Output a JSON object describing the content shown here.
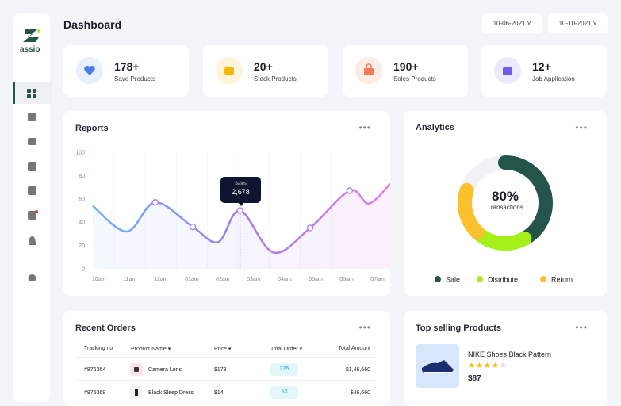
{
  "brand": "assio",
  "header": {
    "title": "Dashboard",
    "date_from": "10-06-2021",
    "date_to": "10-10-2021"
  },
  "stats": [
    {
      "value": "178+",
      "label": "Save Products"
    },
    {
      "value": "20+",
      "label": "Stock Products"
    },
    {
      "value": "190+",
      "label": "Sales Products"
    },
    {
      "value": "12+",
      "label": "Job Application"
    }
  ],
  "reports": {
    "title": "Reports",
    "tooltip": {
      "label": "Sales",
      "value": "2,678"
    },
    "ylim": [
      0,
      100
    ],
    "yticks": [
      0,
      20,
      40,
      60,
      80,
      100
    ],
    "xlim": [
      -0.2,
      9.41
    ],
    "xticks": [
      {
        "value": 0,
        "label": "10am"
      },
      {
        "value": 1,
        "label": "11am"
      },
      {
        "value": 2,
        "label": "12am"
      },
      {
        "value": 3,
        "label": "01am"
      },
      {
        "value": 4,
        "label": "02am"
      },
      {
        "value": 5,
        "label": "03am"
      },
      {
        "value": 6,
        "label": "04am"
      },
      {
        "value": 7,
        "label": "05am"
      },
      {
        "value": 8,
        "label": "06am"
      },
      {
        "value": 9,
        "label": "07am"
      }
    ],
    "x": [
      -0.2,
      0.9,
      1.82,
      3.03,
      3.85,
      4.56,
      5.64,
      6.82,
      8.1,
      8.72,
      9.41
    ],
    "values": [
      54,
      32,
      57,
      36,
      23,
      50,
      14,
      35,
      67,
      56,
      73
    ]
  },
  "analytics": {
    "title": "Analytics",
    "center_value": "80%",
    "center_label": "Transactions",
    "segments": [
      {
        "name": "Sale",
        "color": "#24544a",
        "value": 42
      },
      {
        "name": "Distribute",
        "color": "#a6f01a",
        "value": 20
      },
      {
        "name": "Return",
        "color": "#fbc02d",
        "value": 18
      }
    ]
  },
  "orders": {
    "title": "Recent Orders",
    "columns": [
      "Tracking no",
      "Product Name",
      "Price",
      "Total Order",
      "Total Amount"
    ],
    "rows": [
      [
        "#876364",
        "Camera Lens",
        "$178",
        "325",
        "$1,46,660"
      ],
      [
        "#876368",
        "Black Sleep Dress",
        "$14",
        "53",
        "$46,660"
      ]
    ]
  },
  "top_products": {
    "title": "Top selling Products",
    "items": [
      {
        "name": "NIKE Shoes Black Pattern",
        "price": "$87"
      }
    ]
  }
}
